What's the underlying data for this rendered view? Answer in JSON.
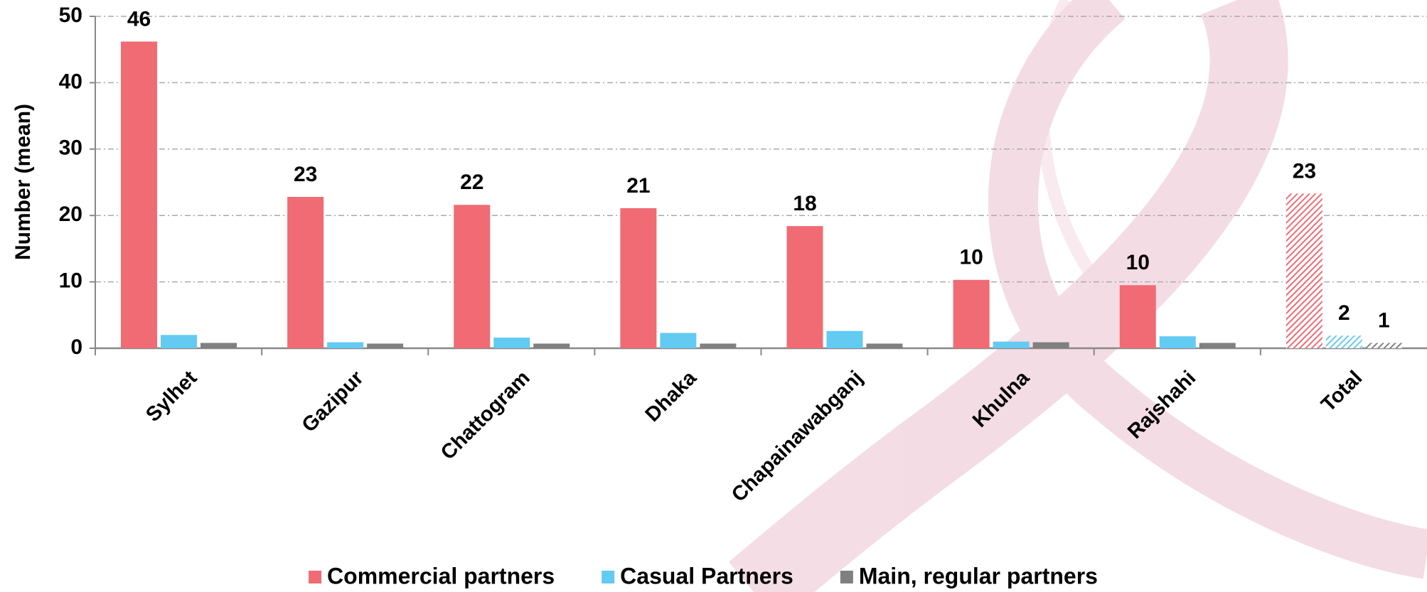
{
  "chart_data": {
    "type": "bar",
    "y_label": "Number (mean)",
    "categories": [
      "Sylhet",
      "Gazipur",
      "Chattogram",
      "Dhaka",
      "Chapainawabganj",
      "Khulna",
      "Rajshahi",
      "Total"
    ],
    "series": [
      {
        "name": "Commercial partners",
        "color": "#f06b74",
        "values": [
          46.2,
          22.8,
          21.6,
          21.1,
          18.4,
          10.3,
          9.5,
          23.3
        ],
        "value_labels": [
          "46",
          "23",
          "22",
          "21",
          "18",
          "10",
          "10",
          "23"
        ]
      },
      {
        "name": "Casual Partners",
        "color": "#63caf2",
        "values": [
          2.0,
          0.9,
          1.6,
          2.3,
          2.6,
          1.0,
          1.8,
          1.9
        ],
        "value_labels": [
          null,
          null,
          null,
          null,
          null,
          null,
          null,
          "2"
        ]
      },
      {
        "name": "Main, regular partners",
        "color": "#808080",
        "values": [
          0.8,
          0.7,
          0.7,
          0.7,
          0.7,
          0.9,
          0.8,
          0.8
        ],
        "value_labels": [
          null,
          null,
          null,
          null,
          null,
          null,
          null,
          "1"
        ]
      }
    ],
    "ylim": [
      0,
      50
    ],
    "yticks": [
      0,
      10,
      20,
      30,
      40,
      50
    ],
    "grid": true,
    "legend": "bottom"
  }
}
